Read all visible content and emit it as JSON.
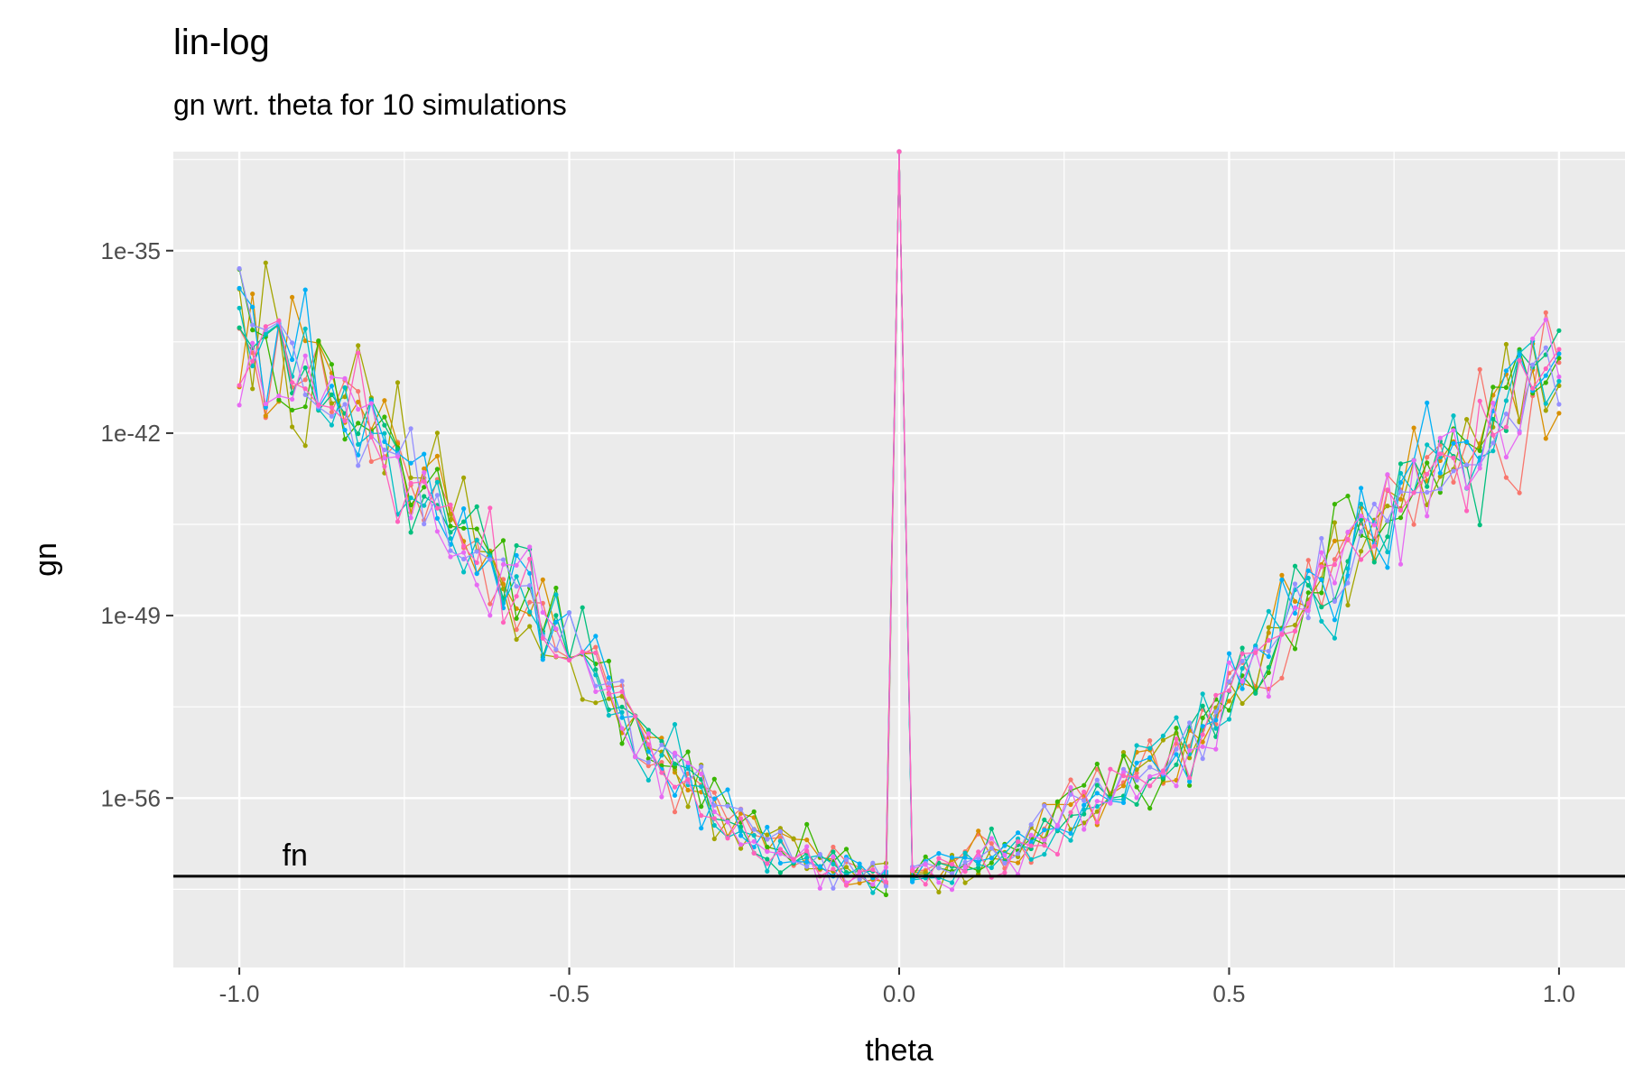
{
  "chart_data": {
    "type": "line",
    "title": "lin-log",
    "subtitle": "gn wrt. theta for 10 simulations",
    "xlabel": "theta",
    "ylabel": "gn",
    "x_ticks": [
      -1.0,
      -0.5,
      0.0,
      0.5,
      1.0
    ],
    "x_tick_labels": [
      "-1.0",
      "-0.5",
      "0.0",
      "0.5",
      "1.0"
    ],
    "y_scale": "log10",
    "y_ticks_exponent": [
      -35,
      -42,
      -49,
      -56
    ],
    "y_tick_labels": [
      "1e-35",
      "1e-42",
      "1e-49",
      "1e-56"
    ],
    "xlim": [
      -1.1,
      1.1
    ],
    "ylim_exponent": [
      -62.5,
      -31.2
    ],
    "grid": true,
    "legend": "none",
    "series_count": 10,
    "series_colors": [
      "#F8766D",
      "#D89000",
      "#A3A500",
      "#39B600",
      "#00BF7D",
      "#00BFC4",
      "#00B0F6",
      "#9590FF",
      "#E76BF3",
      "#FF62BC"
    ],
    "reference_line": {
      "label": "fn",
      "y_exponent": -59.0,
      "color": "#000000"
    },
    "envelope_exponent": {
      "x": [
        -1.0,
        -0.9,
        -0.8,
        -0.7,
        -0.6,
        -0.5,
        -0.4,
        -0.3,
        -0.2,
        -0.1,
        -0.02,
        0.0,
        0.02,
        0.1,
        0.2,
        0.3,
        0.4,
        0.5,
        0.6,
        0.7,
        0.8,
        0.9,
        1.0
      ],
      "y": [
        -38.5,
        -39.8,
        -41.8,
        -45.0,
        -47.5,
        -50.0,
        -53.5,
        -55.8,
        -57.8,
        -58.6,
        -59.0,
        -31.2,
        -59.0,
        -58.6,
        -57.5,
        -56.0,
        -54.5,
        -52.0,
        -49.0,
        -46.0,
        -43.5,
        -41.5,
        -39.0
      ]
    },
    "spike": {
      "x": 0.0,
      "y_exponent": -31.2
    },
    "data_generation": "noisy"
  }
}
